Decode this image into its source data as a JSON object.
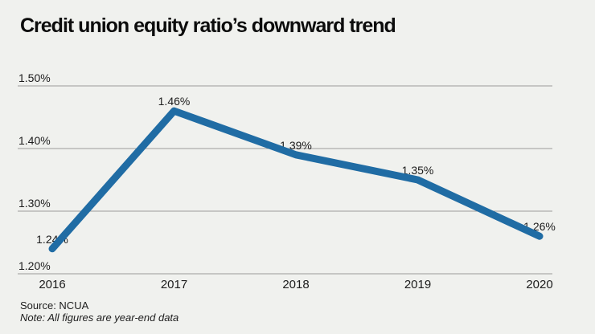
{
  "title": "Credit union equity ratio’s downward trend",
  "footer": {
    "source": "Source: NCUA",
    "note": "Note: All figures are year-end data"
  },
  "colors": {
    "background": "#f0f1ee",
    "line": "#206ca4",
    "gridline": "#9b9b9b",
    "label_text": "#1c1c1c",
    "title_text": "#0c0c0c"
  },
  "chart_data": {
    "type": "line",
    "title": "Credit union equity ratio's downward trend",
    "categories": [
      "2016",
      "2017",
      "2018",
      "2019",
      "2020"
    ],
    "values": [
      1.24,
      1.46,
      1.39,
      1.35,
      1.26
    ],
    "data_labels": [
      "1.24%",
      "1.46%",
      "1.39%",
      "1.35%",
      "1.26%"
    ],
    "series_name": "Credit union equity ratio",
    "unit": "%",
    "xlabel": "",
    "ylabel": "",
    "ylim": [
      1.2,
      1.5
    ],
    "y_ticks": [
      1.2,
      1.3,
      1.4,
      1.5
    ],
    "y_tick_labels": [
      "1.20%",
      "1.30%",
      "1.40%",
      "1.50%"
    ],
    "grid": "horizontal-only",
    "legend": "none",
    "line_width": 9
  }
}
